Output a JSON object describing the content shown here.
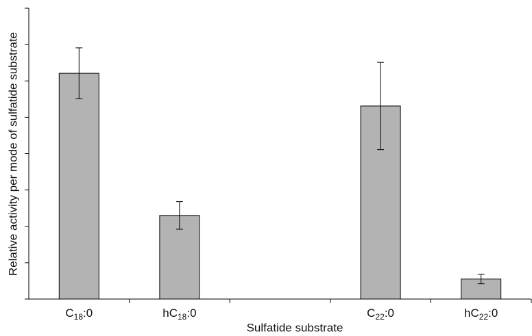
{
  "chart_data": {
    "type": "bar",
    "x_label": "Sulfatide substrate",
    "y_label": "Relative activity per mode of sulfatide substrate",
    "categories": [
      "C18:0",
      "hC18:0",
      null,
      "C22:0",
      "hC22:0"
    ],
    "values": [
      6.21,
      2.3,
      null,
      5.31,
      0.55
    ],
    "errors": [
      0.7,
      0.38,
      null,
      1.2,
      0.13
    ],
    "color": "#b3b3b3",
    "ylim": [
      0,
      8
    ],
    "yticks": [
      0,
      1,
      2,
      3,
      4,
      5,
      6,
      7,
      8
    ]
  }
}
